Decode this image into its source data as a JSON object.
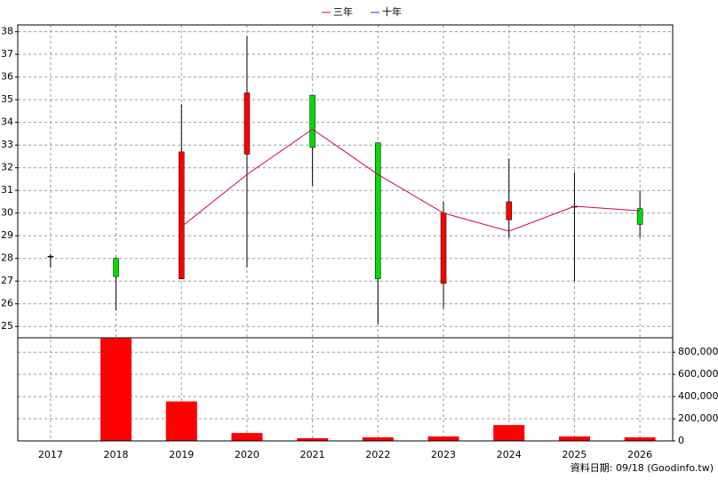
{
  "chart_data": [
    {
      "type": "candlestick",
      "categories": [
        "2017",
        "2018",
        "2019",
        "2020",
        "2021",
        "2022",
        "2023",
        "2024",
        "2025",
        "2026"
      ],
      "open": [
        28.1,
        28.0,
        27.1,
        32.6,
        35.2,
        33.1,
        26.9,
        29.7,
        30.3,
        30.2
      ],
      "high": [
        28.2,
        28.05,
        34.8,
        37.8,
        35.2,
        33.1,
        30.5,
        32.4,
        31.8,
        31.0
      ],
      "low": [
        27.6,
        25.7,
        27.1,
        27.6,
        31.2,
        25.1,
        25.8,
        28.9,
        27.0,
        28.9
      ],
      "close": [
        28.1,
        27.2,
        32.7,
        35.3,
        32.9,
        27.1,
        30.0,
        30.5,
        30.3,
        29.5
      ],
      "up_color": "#ff0000",
      "down_color": "#00dd00",
      "series": [
        {
          "name": "三年",
          "color": "#cc0066",
          "values": [
            null,
            null,
            29.4,
            31.7,
            33.7,
            31.7,
            30.0,
            29.2,
            30.3,
            30.1
          ]
        },
        {
          "name": "十年",
          "color": "#6600cc",
          "values": [
            null,
            null,
            null,
            null,
            null,
            null,
            null,
            null,
            null,
            null
          ]
        }
      ],
      "ylim": [
        24.5,
        38.3
      ],
      "yticks": [
        25,
        26,
        27,
        28,
        29,
        30,
        31,
        32,
        33,
        34,
        35,
        36,
        37,
        38
      ],
      "grid": true,
      "legend": "top"
    },
    {
      "type": "bar",
      "color": "#ff0000",
      "values": [
        4000,
        925000,
        356000,
        71000,
        24000,
        32000,
        40000,
        143000,
        40000,
        32000
      ],
      "ylim": [
        0,
        930000
      ],
      "yticks": [
        0,
        {
          "value": 200000,
          "label": "200,000"
        },
        {
          "value": 400000,
          "label": "400,000"
        },
        {
          "value": 600000,
          "label": "600,000"
        },
        {
          "value": 800000,
          "label": "800,000"
        }
      ],
      "grid": true
    }
  ],
  "footer": "資料日期: 09/18 (Goodinfo.tw)"
}
